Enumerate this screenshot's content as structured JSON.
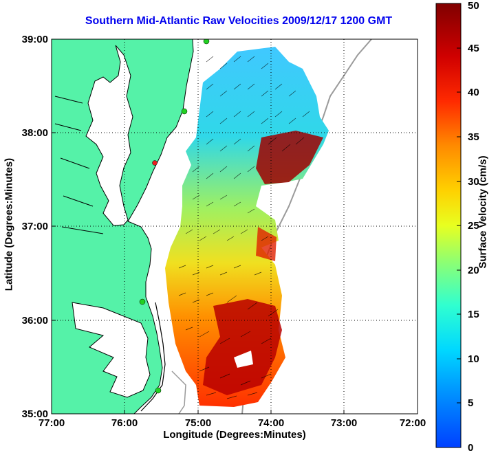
{
  "title": "Southern Mid-Atlantic Raw Velocities 2009/12/17 1200 GMT",
  "xlabel": "Longitude (Degrees:Minutes)",
  "ylabel": "Latitude (Degrees:Minutes)",
  "colorbar": {
    "label": "Surface Velocity (cm/s)",
    "ticks": [
      "0",
      "5",
      "10",
      "15",
      "20",
      "25",
      "30",
      "35",
      "40",
      "45",
      "50"
    ],
    "range": [
      0,
      50
    ]
  },
  "x_ticks": [
    "77:00",
    "76:00",
    "75:00",
    "74:00",
    "73:00",
    "72:00"
  ],
  "y_ticks": [
    "39:00",
    "38:00",
    "37:00",
    "36:00",
    "35:00"
  ],
  "colors": {
    "title": "#0000ee",
    "land": "#55f2a8",
    "coast": "#000000",
    "isobath": "#9a9a9a",
    "station": "#22d022",
    "station_alt": "#e82020"
  }
}
